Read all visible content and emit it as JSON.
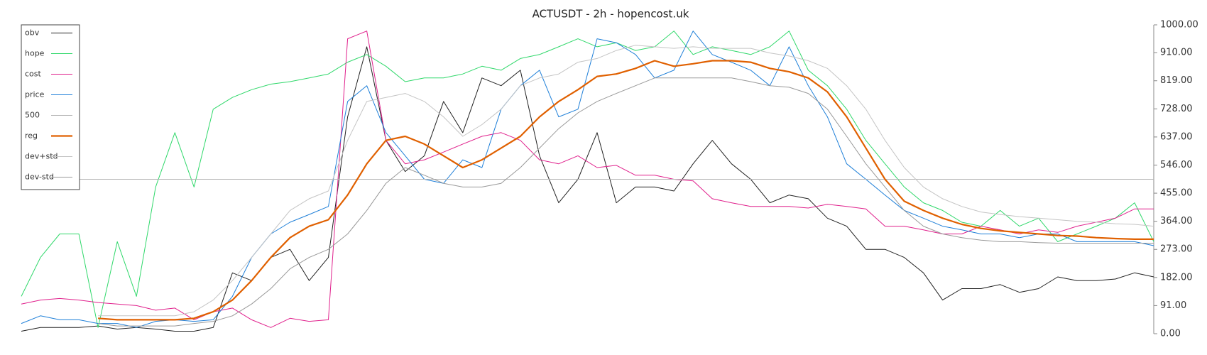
{
  "chart_data": {
    "type": "line",
    "title": "ACTUSDT - 2h - hopencost.uk",
    "categories": [
      null,
      null,
      null,
      null,
      null,
      null,
      null,
      null,
      null,
      null,
      null,
      null,
      null,
      null,
      null,
      null,
      null,
      null,
      null,
      null,
      null,
      null,
      null,
      null,
      null,
      null,
      null,
      null,
      null,
      null,
      null,
      null,
      null,
      null,
      null,
      null,
      null,
      null,
      null,
      null,
      null,
      null,
      null,
      null,
      null,
      null,
      null,
      null,
      null,
      null,
      null,
      null,
      null,
      null,
      null,
      null,
      null,
      null,
      null,
      null
    ],
    "ylim": [
      0,
      1000
    ],
    "yticks": [
      {
        "value": 0,
        "label": "0.00"
      },
      {
        "value": 91,
        "label": "91.00"
      },
      {
        "value": 182,
        "label": "182.00"
      },
      {
        "value": 273,
        "label": "273.00"
      },
      {
        "value": 364,
        "label": "364.00"
      },
      {
        "value": 455,
        "label": "455.00"
      },
      {
        "value": 546,
        "label": "546.00"
      },
      {
        "value": 637,
        "label": "637.00"
      },
      {
        "value": 728,
        "label": "728.00"
      },
      {
        "value": 819,
        "label": "819.00"
      },
      {
        "value": 910,
        "label": "910.00"
      },
      {
        "value": 1000,
        "label": "1000.00"
      }
    ],
    "y_axis_side": "right",
    "grid": false,
    "legend": "upper left",
    "series": [
      {
        "name": "obv",
        "color": "#222222",
        "width": 1,
        "values": [
          8,
          20,
          20,
          20,
          25,
          15,
          20,
          15,
          8,
          8,
          20,
          197,
          172,
          247,
          273,
          172,
          247,
          702,
          929,
          626,
          525,
          576,
          752,
          651,
          828,
          803,
          853,
          576,
          424,
          500,
          651,
          424,
          475,
          475,
          462,
          550,
          626,
          550,
          500,
          424,
          449,
          437,
          374,
          348,
          273,
          273,
          247,
          197,
          109,
          146,
          146,
          159,
          134,
          146,
          184,
          172,
          172,
          177,
          197,
          184
        ]
      },
      {
        "name": "hope",
        "color": "#2fd86a",
        "width": 1,
        "values": [
          121,
          247,
          323,
          323,
          20,
          298,
          121,
          475,
          651,
          475,
          727,
          765,
          790,
          808,
          816,
          828,
          841,
          879,
          904,
          866,
          816,
          828,
          828,
          841,
          866,
          853,
          891,
          904,
          929,
          955,
          929,
          942,
          917,
          929,
          980,
          904,
          929,
          917,
          904,
          929,
          980,
          853,
          803,
          727,
          626,
          550,
          475,
          424,
          399,
          361,
          348,
          399,
          348,
          374,
          298,
          323,
          348,
          374,
          424,
          298
        ]
      },
      {
        "name": "cost",
        "color": "#e0208c",
        "width": 1,
        "values": [
          96,
          109,
          114,
          109,
          101,
          96,
          91,
          76,
          83,
          45,
          71,
          83,
          45,
          20,
          50,
          40,
          45,
          955,
          980,
          626,
          550,
          563,
          588,
          614,
          639,
          651,
          626,
          563,
          550,
          576,
          538,
          545,
          513,
          513,
          500,
          495,
          437,
          424,
          412,
          412,
          412,
          407,
          419,
          412,
          404,
          348,
          348,
          336,
          323,
          323,
          348,
          336,
          323,
          336,
          328,
          348,
          361,
          374,
          404,
          404
        ]
      },
      {
        "name": "price",
        "color": "#1e7fd8",
        "width": 1,
        "values": [
          33,
          58,
          45,
          45,
          33,
          33,
          20,
          40,
          45,
          40,
          45,
          121,
          247,
          323,
          361,
          386,
          412,
          752,
          803,
          651,
          576,
          500,
          487,
          563,
          538,
          727,
          803,
          853,
          702,
          727,
          955,
          942,
          904,
          828,
          853,
          980,
          904,
          879,
          853,
          803,
          929,
          803,
          702,
          550,
          500,
          449,
          399,
          374,
          348,
          336,
          323,
          323,
          311,
          323,
          323,
          298,
          298,
          298,
          298,
          285
        ]
      },
      {
        "name": "500",
        "color": "#b4b4b4",
        "width": 1,
        "values": [
          500,
          500,
          500,
          500,
          500,
          500,
          500,
          500,
          500,
          500,
          500,
          500,
          500,
          500,
          500,
          500,
          500,
          500,
          500,
          500,
          500,
          500,
          500,
          500,
          500,
          500,
          500,
          500,
          500,
          500,
          500,
          500,
          500,
          500,
          500,
          500,
          500,
          500,
          500,
          500,
          500,
          500,
          500,
          500,
          500,
          500,
          500,
          500,
          500,
          500,
          500,
          500,
          500,
          500,
          500,
          500,
          500,
          500,
          500,
          500
        ]
      },
      {
        "name": "reg",
        "color": "#e06000",
        "width": 2.2,
        "values": [
          null,
          null,
          null,
          null,
          50,
          45,
          45,
          45,
          45,
          50,
          71,
          109,
          172,
          247,
          311,
          348,
          369,
          449,
          550,
          626,
          639,
          614,
          576,
          538,
          563,
          601,
          639,
          702,
          752,
          790,
          833,
          841,
          859,
          884,
          866,
          874,
          884,
          884,
          879,
          859,
          848,
          828,
          783,
          702,
          601,
          500,
          429,
          399,
          374,
          354,
          341,
          333,
          328,
          323,
          318,
          316,
          311,
          308,
          306,
          306
        ]
      },
      {
        "name": "dev+std",
        "color": "#c4c4c4",
        "width": 1,
        "values": [
          null,
          null,
          null,
          null,
          58,
          58,
          58,
          58,
          58,
          71,
          109,
          172,
          247,
          323,
          399,
          437,
          462,
          626,
          752,
          765,
          778,
          752,
          702,
          639,
          677,
          727,
          803,
          828,
          841,
          879,
          891,
          917,
          934,
          929,
          924,
          929,
          924,
          924,
          924,
          909,
          899,
          884,
          859,
          803,
          727,
          626,
          538,
          475,
          437,
          412,
          394,
          386,
          379,
          374,
          369,
          364,
          361,
          356,
          354,
          348
        ]
      },
      {
        "name": "dev-std",
        "color": "#999999",
        "width": 1,
        "values": [
          null,
          null,
          null,
          null,
          33,
          25,
          25,
          25,
          25,
          33,
          40,
          58,
          96,
          146,
          210,
          247,
          273,
          323,
          399,
          487,
          538,
          513,
          487,
          475,
          475,
          487,
          538,
          601,
          664,
          715,
          752,
          778,
          803,
          828,
          828,
          828,
          828,
          828,
          816,
          803,
          798,
          778,
          727,
          639,
          550,
          475,
          399,
          348,
          323,
          311,
          303,
          298,
          298,
          295,
          293,
          293,
          293,
          293,
          293,
          293
        ]
      }
    ]
  }
}
